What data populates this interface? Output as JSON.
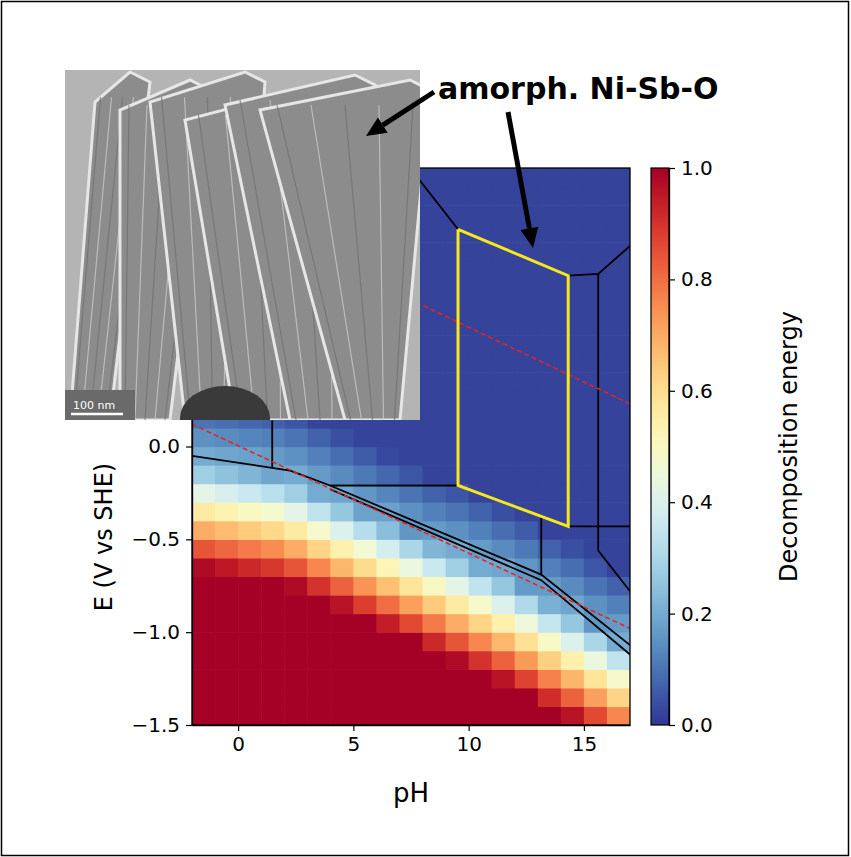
{
  "chart_data": {
    "type": "heatmap",
    "xlabel": "pH",
    "ylabel": "E (V vs SHE)",
    "xlim": [
      -2,
      17
    ],
    "xticks": [
      0,
      5,
      10,
      15
    ],
    "ylim": [
      -1.5,
      1.5
    ],
    "yticks": [
      {
        "value": -1.5,
        "label": "−1.5"
      },
      {
        "value": -1.0,
        "label": "−1.0"
      },
      {
        "value": -0.5,
        "label": "−0.5"
      },
      {
        "value": 0,
        "label": "0.0"
      }
    ],
    "cells": {
      "x": [
        -1.5,
        -0.5,
        0.5,
        1.5,
        2.5,
        3.5,
        4.5,
        5.5,
        6.5,
        7.5,
        8.5,
        9.5,
        10.5,
        11.5,
        12.5,
        13.5,
        14.5,
        15.5,
        16.5
      ],
      "y": [
        -1.45,
        -1.35,
        -1.25,
        -1.15,
        -1.05,
        -0.95,
        -0.85,
        -0.75,
        -0.65,
        -0.55,
        -0.45,
        -0.35,
        -0.25,
        -0.15,
        -0.05,
        0.05,
        0.15,
        0.25,
        0.35,
        0.45,
        0.55,
        0.65,
        0.75,
        0.85,
        0.95,
        1.05,
        1.15,
        1.25,
        1.35,
        1.45
      ],
      "values": [
        [
          1,
          1,
          1,
          1,
          1,
          1,
          1,
          1,
          0.98,
          0.84,
          0.7,
          0.56,
          0.42,
          0.28,
          0.2,
          0.15,
          0.1,
          0.05,
          0.02,
          0.02,
          0.02,
          0.02,
          0.02,
          0.02,
          0.02,
          0.02,
          0.02,
          0.02,
          0.02,
          0.02
        ],
        [
          1,
          1,
          1,
          1,
          1,
          1,
          1,
          1,
          0.95,
          0.81,
          0.67,
          0.53,
          0.39,
          0.25,
          0.19,
          0.14,
          0.09,
          0.04,
          0.02,
          0.02,
          0.02,
          0.02,
          0.02,
          0.02,
          0.02,
          0.02,
          0.02,
          0.02,
          0.02,
          0.02
        ],
        [
          1,
          1,
          1,
          1,
          1,
          1,
          1,
          1,
          0.92,
          0.78,
          0.64,
          0.5,
          0.36,
          0.22,
          0.18,
          0.13,
          0.08,
          0.03,
          0.02,
          0.02,
          0.02,
          0.02,
          0.02,
          0.02,
          0.02,
          0.02,
          0.02,
          0.02,
          0.02,
          0.02
        ],
        [
          1,
          1,
          1,
          1,
          1,
          1,
          1,
          1,
          0.89,
          0.75,
          0.61,
          0.47,
          0.33,
          0.19,
          0.17,
          0.12,
          0.07,
          0.02,
          0.02,
          0.02,
          0.02,
          0.02,
          0.02,
          0.02,
          0.02,
          0.02,
          0.02,
          0.02,
          0.02,
          0.02
        ],
        [
          1,
          1,
          1,
          1,
          1,
          1,
          1,
          0.98,
          0.84,
          0.7,
          0.56,
          0.42,
          0.28,
          0.2,
          0.15,
          0.1,
          0.05,
          0.02,
          0.02,
          0.02,
          0.02,
          0.02,
          0.02,
          0.02,
          0.02,
          0.02,
          0.02,
          0.02,
          0.02,
          0.02
        ],
        [
          1,
          1,
          1,
          1,
          1,
          1,
          1,
          0.9,
          0.76,
          0.62,
          0.48,
          0.34,
          0.2,
          0.17,
          0.12,
          0.07,
          0.02,
          0.02,
          0.02,
          0.02,
          0.02,
          0.02,
          0.02,
          0.02,
          0.02,
          0.02,
          0.02,
          0.02,
          0.02,
          0.02
        ],
        [
          1,
          1,
          1,
          1,
          1,
          1,
          0.96,
          0.82,
          0.68,
          0.54,
          0.4,
          0.26,
          0.19,
          0.14,
          0.09,
          0.04,
          0.02,
          0.02,
          0.02,
          0.02,
          0.02,
          0.02,
          0.02,
          0.02,
          0.02,
          0.02,
          0.02,
          0.02,
          0.02,
          0.02
        ],
        [
          1,
          1,
          1,
          1,
          1,
          1,
          0.88,
          0.74,
          0.6,
          0.46,
          0.32,
          0.18,
          0.16,
          0.11,
          0.06,
          0.02,
          0.02,
          0.02,
          0.02,
          0.02,
          0.02,
          0.02,
          0.02,
          0.02,
          0.02,
          0.02,
          0.02,
          0.02,
          0.02,
          0.02
        ],
        [
          1,
          1,
          1,
          1,
          1,
          0.94,
          0.8,
          0.66,
          0.52,
          0.38,
          0.24,
          0.18,
          0.13,
          0.08,
          0.03,
          0.02,
          0.02,
          0.02,
          0.02,
          0.02,
          0.02,
          0.02,
          0.02,
          0.02,
          0.02,
          0.02,
          0.02,
          0.02,
          0.02,
          0.02
        ],
        [
          1,
          1,
          1,
          1,
          1,
          0.86,
          0.72,
          0.58,
          0.44,
          0.3,
          0.16,
          0.15,
          0.1,
          0.05,
          0.02,
          0.02,
          0.02,
          0.02,
          0.02,
          0.02,
          0.02,
          0.02,
          0.02,
          0.02,
          0.02,
          0.02,
          0.02,
          0.02,
          0.02,
          0.02
        ],
        [
          1,
          1,
          1,
          1,
          0.92,
          0.78,
          0.64,
          0.5,
          0.36,
          0.22,
          0.17,
          0.12,
          0.07,
          0.02,
          0.02,
          0.02,
          0.02,
          0.02,
          0.02,
          0.02,
          0.02,
          0.02,
          0.02,
          0.02,
          0.02,
          0.02,
          0.02,
          0.02,
          0.02,
          0.02
        ],
        [
          1,
          1,
          1,
          0.98,
          0.84,
          0.7,
          0.56,
          0.42,
          0.28,
          0.2,
          0.15,
          0.1,
          0.05,
          0.02,
          0.02,
          0.02,
          0.02,
          0.02,
          0.02,
          0.02,
          0.02,
          0.02,
          0.02,
          0.02,
          0.02,
          0.02,
          0.02,
          0.02,
          0.02,
          0.02
        ],
        [
          1,
          1,
          1,
          0.9,
          0.76,
          0.62,
          0.48,
          0.34,
          0.2,
          0.17,
          0.12,
          0.07,
          0.02,
          0.02,
          0.02,
          0.02,
          0.02,
          0.02,
          0.02,
          0.02,
          0.02,
          0.02,
          0.02,
          0.02,
          0.02,
          0.02,
          0.02,
          0.02,
          0.02,
          0.02
        ],
        [
          1,
          1,
          0.96,
          0.82,
          0.68,
          0.54,
          0.4,
          0.26,
          0.19,
          0.14,
          0.09,
          0.04,
          0.02,
          0.02,
          0.02,
          0.02,
          0.02,
          0.02,
          0.02,
          0.02,
          0.02,
          0.02,
          0.02,
          0.02,
          0.02,
          0.02,
          0.02,
          0.02,
          0.02,
          0.02
        ],
        [
          1,
          1,
          0.87,
          0.73,
          0.59,
          0.45,
          0.31,
          0.17,
          0.16,
          0.11,
          0.06,
          0.02,
          0.02,
          0.02,
          0.02,
          0.02,
          0.02,
          0.02,
          0.02,
          0.02,
          0.02,
          0.02,
          0.02,
          0.02,
          0.02,
          0.02,
          0.02,
          0.02,
          0.02,
          0.02
        ],
        [
          1,
          0.91,
          0.77,
          0.63,
          0.49,
          0.35,
          0.21,
          0.17,
          0.12,
          0.07,
          0.02,
          0.02,
          0.02,
          0.02,
          0.02,
          0.02,
          0.02,
          0.02,
          0.02,
          0.02,
          0.02,
          0.02,
          0.02,
          0.02,
          0.02,
          0.02,
          0.02,
          0.02,
          0.02,
          0.02
        ],
        [
          0.96,
          0.82,
          0.68,
          0.54,
          0.4,
          0.26,
          0.19,
          0.14,
          0.09,
          0.04,
          0.02,
          0.02,
          0.02,
          0.02,
          0.02,
          0.02,
          0.02,
          0.02,
          0.02,
          0.02,
          0.02,
          0.02,
          0.02,
          0.02,
          0.02,
          0.02,
          0.02,
          0.02,
          0.02,
          0.02
        ],
        [
          0.86,
          0.72,
          0.58,
          0.44,
          0.3,
          0.16,
          0.15,
          0.1,
          0.05,
          0.02,
          0.02,
          0.02,
          0.02,
          0.02,
          0.02,
          0.02,
          0.02,
          0.02,
          0.02,
          0.02,
          0.02,
          0.02,
          0.02,
          0.02,
          0.02,
          0.02,
          0.02,
          0.02,
          0.02,
          0.02
        ],
        [
          0.76,
          0.62,
          0.48,
          0.34,
          0.2,
          0.17,
          0.12,
          0.07,
          0.02,
          0.02,
          0.02,
          0.02,
          0.02,
          0.02,
          0.02,
          0.02,
          0.02,
          0.02,
          0.02,
          0.02,
          0.02,
          0.02,
          0.02,
          0.02,
          0.02,
          0.02,
          0.02,
          0.02,
          0.02,
          0.02
        ]
      ]
    },
    "colorbar": {
      "label": "Decomposition energy",
      "range": [
        0,
        1
      ],
      "ticks": [
        {
          "value": 0,
          "label": "0.0"
        },
        {
          "value": 0.2,
          "label": "0.2"
        },
        {
          "value": 0.4,
          "label": "0.4"
        },
        {
          "value": 0.6,
          "label": "0.6"
        },
        {
          "value": 0.8,
          "label": "0.8"
        },
        {
          "value": 1,
          "label": "1.0"
        }
      ]
    },
    "series": [
      {
        "type": "line",
        "color": "#000000",
        "line_style": "solid",
        "x": [
          -2,
          2.26,
          3.99,
          13.15,
          17
        ],
        "y": [
          -0.05,
          -0.13,
          -0.21,
          -0.69,
          -1.07
        ]
      },
      {
        "type": "line",
        "color": "#000000",
        "line_style": "solid",
        "x": [
          3.99,
          13.15,
          17
        ],
        "y": [
          -0.23,
          -0.72,
          -1.12
        ]
      },
      {
        "type": "line",
        "color": "#000000",
        "line_style": "solid",
        "x": [
          3.99,
          9.54
        ],
        "y": [
          -0.21,
          -0.21
        ]
      },
      {
        "type": "line",
        "color": "#000000",
        "line_style": "solid",
        "x": [
          1.48,
          1.48
        ],
        "y": [
          0.14,
          -0.11
        ]
      },
      {
        "type": "line",
        "color": "#000000",
        "line_style": "solid",
        "x": [
          13.15,
          13.15
        ],
        "y": [
          -0.37,
          -0.69
        ]
      },
      {
        "type": "line",
        "color": "#000000",
        "line_style": "solid",
        "x": [
          7.46,
          9.54,
          14.32,
          15.62,
          17
        ],
        "y": [
          1.5,
          1.17,
          0.92,
          0.93,
          1.08
        ]
      },
      {
        "type": "line",
        "color": "#000000",
        "line_style": "solid",
        "x": [
          15.62,
          15.62
        ],
        "y": [
          0.93,
          -0.56
        ]
      },
      {
        "type": "line",
        "color": "#000000",
        "line_style": "solid",
        "x": [
          14.32,
          17
        ],
        "y": [
          -0.43,
          -0.43
        ]
      },
      {
        "type": "line",
        "color": "#000000",
        "line_style": "solid",
        "x": [
          15.62,
          17
        ],
        "y": [
          -0.56,
          -0.78
        ]
      },
      {
        "type": "line",
        "color": "#e8221c",
        "line_style": "dashed",
        "x": [
          -2,
          17
        ],
        "y": [
          1.35,
          0.23
        ]
      },
      {
        "type": "line",
        "color": "#e8221c",
        "line_style": "dashed",
        "x": [
          -2,
          17
        ],
        "y": [
          0.12,
          -0.98
        ]
      },
      {
        "type": "line",
        "color": "#f7e81c",
        "line_style": "solid",
        "x": [
          9.54,
          9.54,
          14.32,
          14.32,
          9.54
        ],
        "y": [
          1.17,
          -0.21,
          -0.43,
          0.92,
          1.17
        ]
      }
    ],
    "annotations": [
      {
        "text": "amorph. Ni-Sb-O"
      }
    ],
    "inset": {
      "scale_bar": "100 nm"
    }
  }
}
